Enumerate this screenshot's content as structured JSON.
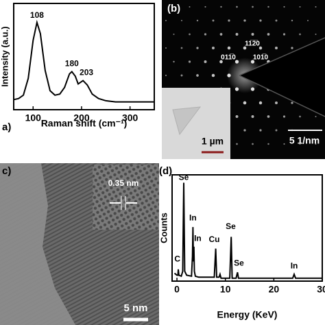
{
  "chart_data": [
    {
      "type": "line",
      "panel_label": "a)",
      "x_label": "Raman shift (cm⁻¹)",
      "y_label": "Intensity (a.u.)",
      "x": [
        60,
        70,
        80,
        90,
        100,
        108,
        115,
        125,
        135,
        145,
        155,
        165,
        175,
        180,
        187,
        193,
        203,
        212,
        222,
        235,
        250,
        270,
        300,
        330,
        350
      ],
      "values": [
        0.09,
        0.1,
        0.13,
        0.28,
        0.62,
        0.78,
        0.68,
        0.35,
        0.17,
        0.13,
        0.14,
        0.2,
        0.32,
        0.34,
        0.3,
        0.23,
        0.26,
        0.22,
        0.14,
        0.1,
        0.08,
        0.07,
        0.07,
        0.07,
        0.07
      ],
      "color": "#000000",
      "xlim": [
        60,
        350
      ],
      "ylim": [
        0,
        0.95
      ],
      "xticks": [
        100,
        200,
        300
      ],
      "annotations": [
        {
          "text": "108",
          "x": 108,
          "y": 0.84
        },
        {
          "text": "180",
          "x": 180,
          "y": 0.41
        },
        {
          "text": "203",
          "x": 210,
          "y": 0.33
        }
      ]
    },
    {
      "type": "line",
      "panel_label": "(d)",
      "x_label": "Energy (KeV)",
      "y_label": "Counts",
      "x": [
        -0.5,
        0,
        0.2,
        0.28,
        0.4,
        0.9,
        1.2,
        1.4,
        1.6,
        2.0,
        3.0,
        3.2,
        3.3,
        3.4,
        3.5,
        3.6,
        3.8,
        4.5,
        7.7,
        8.0,
        8.2,
        8.7,
        8.9,
        9.1,
        10.9,
        11.2,
        11.4,
        12.2,
        12.5,
        12.7,
        23.9,
        24.2,
        24.5,
        30
      ],
      "values": [
        0.08,
        0.06,
        0.06,
        0.12,
        0.06,
        0.05,
        0.1,
        1.0,
        0.1,
        0.06,
        0.05,
        0.25,
        0.55,
        0.2,
        0.35,
        0.1,
        0.05,
        0.04,
        0.04,
        0.33,
        0.04,
        0.04,
        0.07,
        0.03,
        0.03,
        0.45,
        0.03,
        0.03,
        0.09,
        0.03,
        0.03,
        0.07,
        0.03,
        0.03
      ],
      "color": "#000000",
      "xlim": [
        -1,
        30
      ],
      "ylim": [
        0,
        1.08
      ],
      "xticks": [
        0,
        10,
        20,
        30
      ],
      "annotations": [
        {
          "text": "Se",
          "x": 1.4,
          "y": 1.05
        },
        {
          "text": "In",
          "x": 3.3,
          "y": 0.64
        },
        {
          "text": "In",
          "x": 4.3,
          "y": 0.43
        },
        {
          "text": "Cu",
          "x": 7.7,
          "y": 0.42
        },
        {
          "text": "Se",
          "x": 11.1,
          "y": 0.55
        },
        {
          "text": "Se",
          "x": 12.8,
          "y": 0.18
        },
        {
          "text": "In",
          "x": 24.2,
          "y": 0.15
        },
        {
          "text": "C",
          "x": 0.1,
          "y": 0.22
        }
      ]
    }
  ],
  "images": [
    {
      "panel_label": "(b)",
      "indices": [
        "11̅2̅0",
        "011̅0",
        "101̅0"
      ],
      "inset_scale_bar": "1 µm",
      "scale_bar": "5 1/nm"
    },
    {
      "panel_label": "c)",
      "inset_label": "0.35 nm",
      "scale_bar": "5 nm"
    }
  ]
}
